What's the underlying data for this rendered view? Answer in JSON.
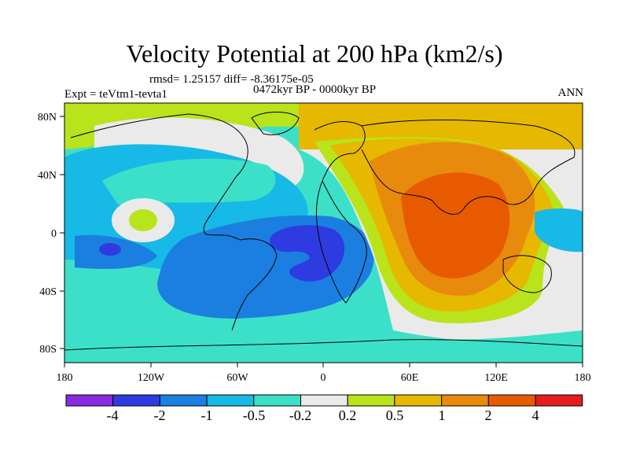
{
  "title": "Velocity Potential at 200 hPa (km2/s)",
  "stats": "rmsd= 1.25157 diff= -8.36175e-05",
  "period": "0472kyr BP - 0000kyr BP",
  "experiment": "Expt = teVtm1-tevta1",
  "season": "ANN",
  "map_axes": {
    "x_ticks": [
      "180",
      "120W",
      "60W",
      "0",
      "60E",
      "120E",
      "180"
    ],
    "y_ticks": [
      "80N",
      "40N",
      "0",
      "40S",
      "80S"
    ]
  },
  "colorbar": {
    "labels": [
      "-4",
      "-2",
      "-1",
      "-0.5",
      "-0.2",
      "0.2",
      "0.5",
      "1",
      "2",
      "4"
    ],
    "colors": [
      "#8a2be2",
      "#2e3be0",
      "#1a7fe0",
      "#17b9e6",
      "#3ce0c8",
      "#eaeaea",
      "#b9e31b",
      "#e6b800",
      "#e88a0c",
      "#e85a00",
      "#e41c1c"
    ]
  }
}
